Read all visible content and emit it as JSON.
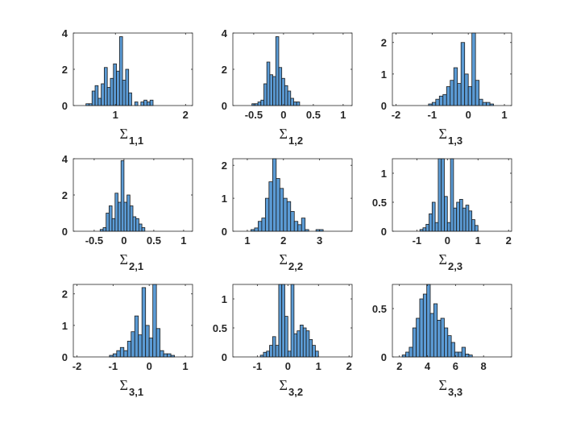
{
  "figure": {
    "background": "#ffffff",
    "bar_color": "#5b9bd5",
    "edge_color": "#1a1a1a",
    "axis_color": "#262626"
  },
  "chart_data": [
    {
      "id": "s11",
      "type": "bar",
      "title": "",
      "xlabel": "Σ",
      "subscript": "1,1",
      "xlim": [
        0.4,
        2.1
      ],
      "ylim": [
        0,
        4
      ],
      "xticks": [
        1,
        2
      ],
      "xtick_labels": [
        "1",
        "2"
      ],
      "yticks": [
        0,
        2,
        4
      ],
      "ytick_labels": [
        "0",
        "2",
        "4"
      ],
      "bin_start": 0.58,
      "bin_width": 0.0435,
      "values": [
        0.1,
        0.1,
        0.8,
        1.1,
        0.4,
        1.2,
        2.1,
        1.0,
        1.5,
        2.3,
        1.9,
        3.8,
        1.4,
        2.0,
        0.7,
        0,
        0.2,
        0,
        0.2,
        0.3,
        0.2,
        0.3
      ]
    },
    {
      "id": "s12",
      "type": "bar",
      "title": "",
      "xlabel": "Σ",
      "subscript": "1,2",
      "xlim": [
        -0.85,
        1.15
      ],
      "ylim": [
        0,
        4
      ],
      "xticks": [
        -0.5,
        0,
        0.5,
        1
      ],
      "xtick_labels": [
        "-0.5",
        "0",
        "0.5",
        "1"
      ],
      "yticks": [
        0,
        2,
        4
      ],
      "ytick_labels": [
        "0",
        "2",
        "4"
      ],
      "bin_start": -0.53,
      "bin_width": 0.05,
      "values": [
        0.1,
        0.1,
        0.2,
        0.3,
        1.2,
        2.4,
        1.7,
        1.6,
        3.8,
        2.1,
        1.5,
        1.1,
        0.8,
        0.4,
        0.2,
        0.2
      ]
    },
    {
      "id": "s13",
      "type": "bar",
      "title": "",
      "xlabel": "Σ",
      "subscript": "1,3",
      "xlim": [
        -2.1,
        1.2
      ],
      "ylim": [
        0,
        2.3
      ],
      "xticks": [
        -2,
        -1,
        0,
        1
      ],
      "xtick_labels": [
        "-2",
        "-1",
        "0",
        "1"
      ],
      "yticks": [
        0,
        1,
        2
      ],
      "ytick_labels": [
        "0",
        "1",
        "2"
      ],
      "bin_start": -1.1,
      "bin_width": 0.1,
      "values": [
        0.05,
        0.1,
        0.2,
        0.3,
        0.35,
        0.6,
        0.8,
        1.2,
        0.7,
        2.0,
        1.0,
        0.6,
        2.4,
        0.8,
        0.2,
        0.1,
        0.1,
        0.05
      ]
    },
    {
      "id": "s21",
      "type": "bar",
      "title": "",
      "xlabel": "Σ",
      "subscript": "2,1",
      "xlim": [
        -0.85,
        1.15
      ],
      "ylim": [
        0,
        4
      ],
      "xticks": [
        -0.5,
        0,
        0.5,
        1
      ],
      "xtick_labels": [
        "-0.5",
        "0",
        "0.5",
        "1"
      ],
      "yticks": [
        0,
        2,
        4
      ],
      "ytick_labels": [
        "0",
        "2",
        "4"
      ],
      "bin_start": -0.4,
      "bin_width": 0.05,
      "values": [
        0.1,
        0.2,
        1.0,
        1.4,
        0.7,
        2.1,
        1.6,
        3.9,
        1.6,
        2.0,
        1.4,
        0.8,
        0.7,
        0.4,
        0.2
      ]
    },
    {
      "id": "s22",
      "type": "bar",
      "title": "",
      "xlabel": "Σ",
      "subscript": "2,2",
      "xlim": [
        0.6,
        3.9
      ],
      "ylim": [
        0,
        2.2
      ],
      "xticks": [
        1,
        2,
        3
      ],
      "xtick_labels": [
        "1",
        "2",
        "3"
      ],
      "yticks": [
        0,
        1,
        2
      ],
      "ytick_labels": [
        "0",
        "1",
        "2"
      ],
      "bin_start": 1.1,
      "bin_width": 0.1,
      "values": [
        0.05,
        0.1,
        0.3,
        0.4,
        1.0,
        1.5,
        2.2,
        1.6,
        1.3,
        1.0,
        0.9,
        0.6,
        0.3,
        0.2,
        0.4,
        0.05,
        0,
        0,
        0.05,
        0.05
      ]
    },
    {
      "id": "s23",
      "type": "bar",
      "title": "",
      "xlabel": "Σ",
      "subscript": "2,3",
      "xlim": [
        -1.8,
        2.1
      ],
      "ylim": [
        0,
        1.25
      ],
      "xticks": [
        -1,
        0,
        1,
        2
      ],
      "xtick_labels": [
        "-1",
        "0",
        "1",
        "2"
      ],
      "yticks": [
        0,
        0.5,
        1
      ],
      "ytick_labels": [
        "0",
        "0.5",
        "1"
      ],
      "bin_start": -0.9,
      "bin_width": 0.1,
      "values": [
        0.03,
        0.06,
        0.12,
        0.3,
        0.5,
        0.15,
        1.25,
        1.25,
        0.6,
        0.15,
        1.25,
        0.4,
        0.5,
        0.55,
        0.4,
        0.45,
        0.35,
        0.2,
        0.1
      ]
    },
    {
      "id": "s31",
      "type": "bar",
      "title": "",
      "xlabel": "Σ",
      "subscript": "3,1",
      "xlim": [
        -2.1,
        1.2
      ],
      "ylim": [
        0,
        2.3
      ],
      "xticks": [
        -2,
        -1,
        0,
        1
      ],
      "xtick_labels": [
        "-2",
        "-1",
        "0",
        "1"
      ],
      "yticks": [
        0,
        1,
        2
      ],
      "ytick_labels": [
        "0",
        "1",
        "2"
      ],
      "bin_start": -1.1,
      "bin_width": 0.1,
      "values": [
        0.05,
        0.1,
        0.2,
        0.3,
        0.2,
        0.5,
        0.8,
        1.3,
        0.7,
        2.2,
        1.0,
        0.6,
        2.4,
        0.9,
        0.2,
        0.1,
        0.1,
        0.05
      ]
    },
    {
      "id": "s32",
      "type": "bar",
      "title": "",
      "xlabel": "Σ",
      "subscript": "3,2",
      "xlim": [
        -1.8,
        2.1
      ],
      "ylim": [
        0,
        1.25
      ],
      "xticks": [
        -1,
        0,
        1,
        2
      ],
      "xtick_labels": [
        "-1",
        "0",
        "1",
        "2"
      ],
      "yticks": [
        0,
        0.5,
        1
      ],
      "ytick_labels": [
        "0",
        "0.5",
        "1"
      ],
      "bin_start": -0.9,
      "bin_width": 0.1,
      "values": [
        0.03,
        0.08,
        0.1,
        0.2,
        0.35,
        0.2,
        1.25,
        1.25,
        0.7,
        0.1,
        1.25,
        0.4,
        0.45,
        0.55,
        0.5,
        0.45,
        0.3,
        0.2,
        0.1
      ]
    },
    {
      "id": "s33",
      "type": "bar",
      "title": "",
      "xlabel": "Σ",
      "subscript": "3,3",
      "xlim": [
        1.5,
        10
      ],
      "ylim": [
        0,
        0.75
      ],
      "xticks": [
        2,
        4,
        6,
        8
      ],
      "xtick_labels": [
        "2",
        "4",
        "6",
        "8"
      ],
      "yticks": [
        0,
        0.5
      ],
      "ytick_labels": [
        "0",
        "0.5"
      ],
      "bin_start": 2.2,
      "bin_width": 0.25,
      "values": [
        0.02,
        0.05,
        0.1,
        0.3,
        0.4,
        0.6,
        0.65,
        0.75,
        0.45,
        0.55,
        0.38,
        0.4,
        0.3,
        0.22,
        0.15,
        0.05,
        0.05,
        0.1,
        0.03,
        0.02
      ]
    }
  ]
}
